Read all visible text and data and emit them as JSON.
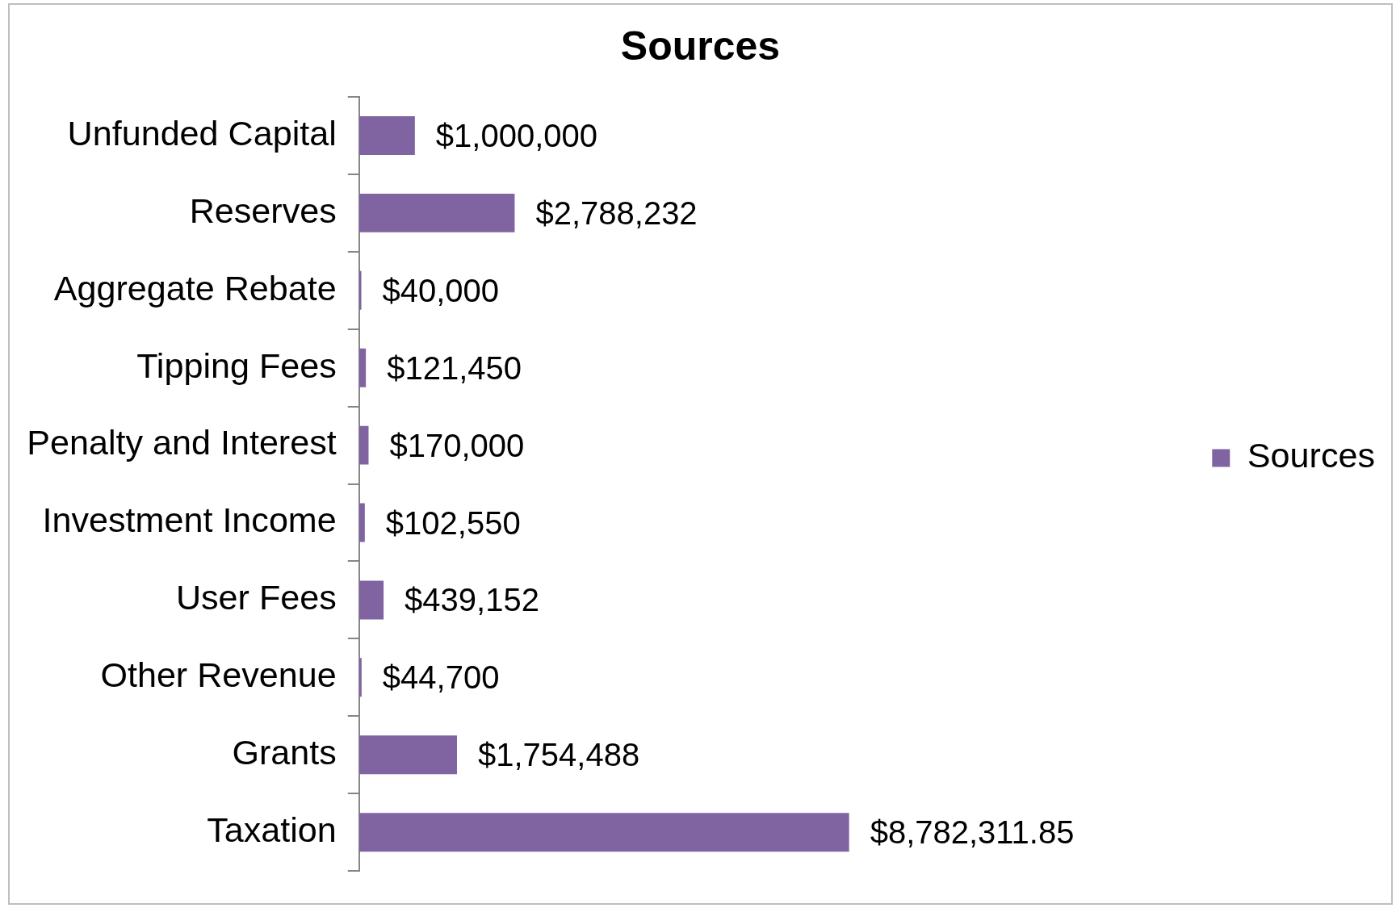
{
  "chart_data": {
    "type": "bar",
    "orientation": "horizontal",
    "title": "Sources",
    "categories": [
      "Unfunded Capital",
      "Reserves",
      "Aggregate Rebate",
      "Tipping Fees",
      "Penalty and Interest",
      "Investment Income",
      "User Fees",
      "Other Revenue",
      "Grants",
      "Taxation"
    ],
    "series": [
      {
        "name": "Sources",
        "color": "#8064a2",
        "values": [
          1000000,
          2788232,
          40000,
          121450,
          170000,
          102550,
          439152,
          44700,
          1754488,
          8782311.85
        ],
        "value_labels": [
          "$1,000,000",
          "$2,788,232",
          "$40,000",
          "$121,450",
          "$170,000",
          "$102,550",
          "$439,152",
          "$44,700",
          "$1,754,488",
          "$8,782,311.85"
        ]
      }
    ],
    "tick_labels": "y",
    "legend": "right"
  }
}
